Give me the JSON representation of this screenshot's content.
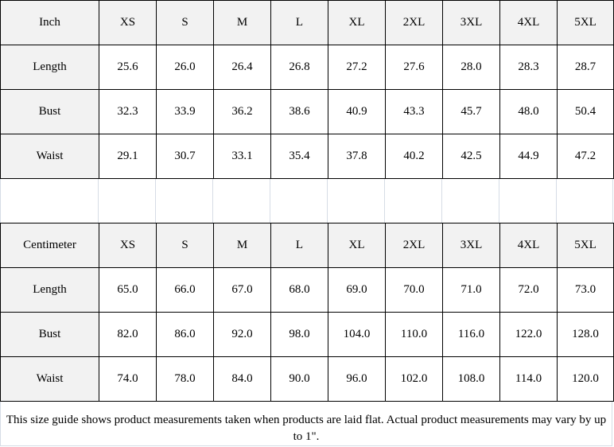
{
  "inch_table": {
    "headers": [
      "Inch",
      "XS",
      "S",
      "M",
      "L",
      "XL",
      "2XL",
      "3XL",
      "4XL",
      "5XL"
    ],
    "rows": [
      [
        "Length",
        "25.6",
        "26.0",
        "26.4",
        "26.8",
        "27.2",
        "27.6",
        "28.0",
        "28.3",
        "28.7"
      ],
      [
        "Bust",
        "32.3",
        "33.9",
        "36.2",
        "38.6",
        "40.9",
        "43.3",
        "45.7",
        "48.0",
        "50.4"
      ],
      [
        "Waist",
        "29.1",
        "30.7",
        "33.1",
        "35.4",
        "37.8",
        "40.2",
        "42.5",
        "44.9",
        "47.2"
      ]
    ]
  },
  "cm_table": {
    "headers": [
      "Centimeter",
      "XS",
      "S",
      "M",
      "L",
      "XL",
      "2XL",
      "3XL",
      "4XL",
      "5XL"
    ],
    "rows": [
      [
        "Length",
        "65.0",
        "66.0",
        "67.0",
        "68.0",
        "69.0",
        "70.0",
        "71.0",
        "72.0",
        "73.0"
      ],
      [
        "Bust",
        "82.0",
        "86.0",
        "92.0",
        "98.0",
        "104.0",
        "110.0",
        "116.0",
        "122.0",
        "128.0"
      ],
      [
        "Waist",
        "74.0",
        "78.0",
        "84.0",
        "90.0",
        "96.0",
        "102.0",
        "108.0",
        "114.0",
        "120.0"
      ]
    ]
  },
  "footer": {
    "note": "This size guide shows product measurements taken when products are laid flat. Actual product measurements may vary by up to 1\"."
  }
}
